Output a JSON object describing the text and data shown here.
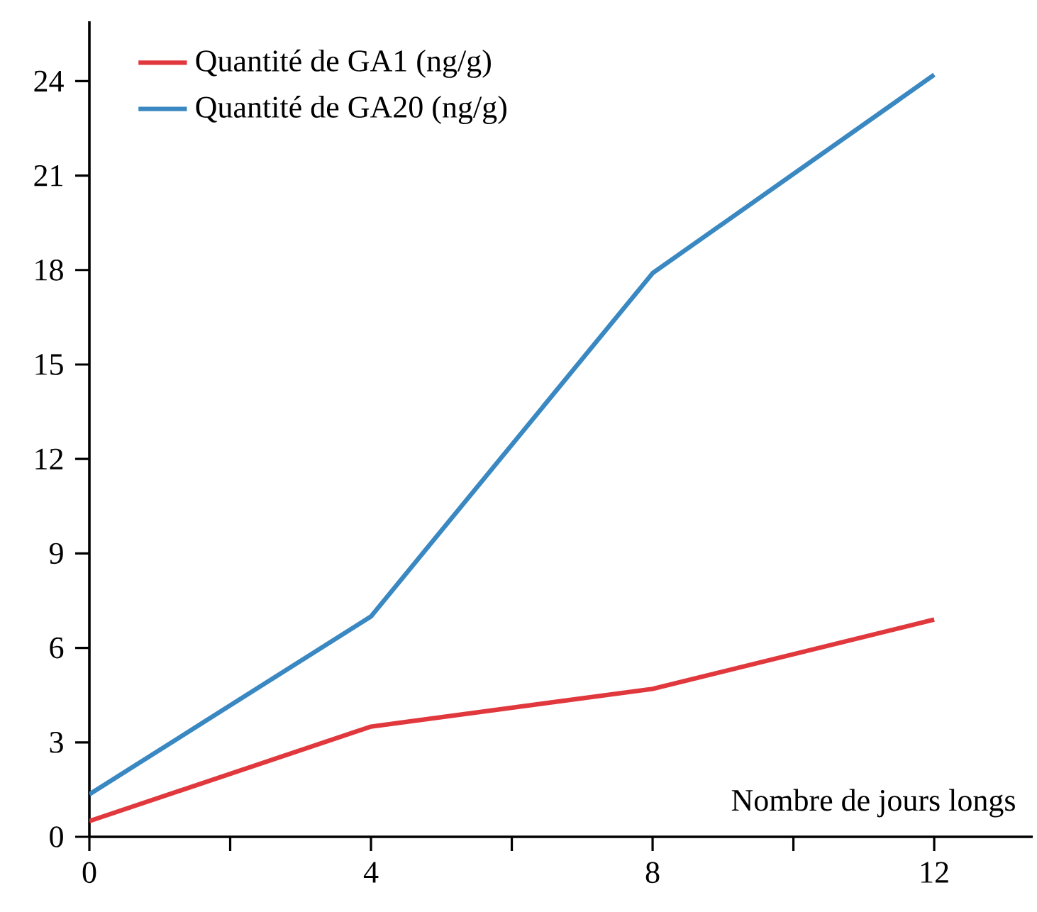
{
  "chart_data": {
    "type": "line",
    "xlabel": "Nombre de jours longs",
    "x": [
      0,
      4,
      8,
      12
    ],
    "series": [
      {
        "name": "Quantité de GA1 (ng/g)",
        "color": "#e0383d",
        "values": [
          0.5,
          3.5,
          4.7,
          6.9
        ]
      },
      {
        "name": "Quantité de GA20 (ng/g)",
        "color": "#3a88c2",
        "values": [
          1.35,
          7,
          17.9,
          24.2
        ]
      }
    ],
    "xlim": [
      0,
      13.4
    ],
    "ylim": [
      0,
      25.9
    ],
    "xticks": [
      0,
      {
        "value": 2,
        "label": null
      },
      4,
      {
        "value": 6,
        "label": null
      },
      8,
      {
        "value": 10,
        "label": null
      },
      12
    ],
    "yticks": [
      0,
      3,
      6,
      9,
      12,
      15,
      18,
      21,
      24
    ],
    "grid": false,
    "legend": "top left",
    "marker": "none",
    "line_style": "solid"
  }
}
